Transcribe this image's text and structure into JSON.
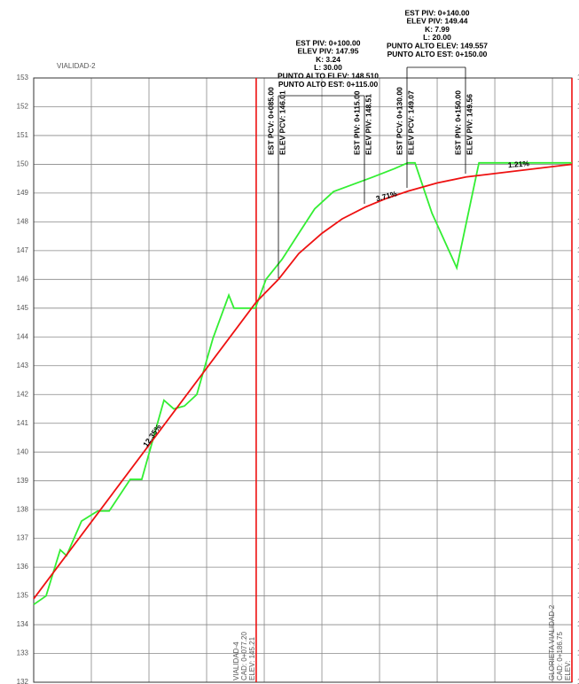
{
  "chart_data": {
    "type": "line",
    "title": "VIALIDAD-2",
    "xlim": [
      0,
      186.75
    ],
    "ylim": [
      132,
      153
    ],
    "xticks": [
      0,
      20,
      40,
      60,
      80,
      100,
      120,
      140,
      160,
      180
    ],
    "yticks": [
      132,
      133,
      134,
      135,
      136,
      137,
      138,
      139,
      140,
      141,
      142,
      143,
      144,
      145,
      146,
      147,
      148,
      149,
      150,
      151,
      152,
      153
    ],
    "grid": true,
    "series": [
      {
        "color": "#33ee33",
        "x": [
          0,
          4.3,
          9.2,
          11.4,
          16.6,
          22.2,
          26.2,
          33.5,
          37.5,
          45.2,
          48.6,
          52.3,
          56.6,
          62.2,
          67.7,
          69.5,
          76.9,
          80.6,
          86.2,
          92.3,
          97.5,
          104,
          117.5,
          125.2,
          129.8,
          132.3,
          138.2,
          146.8,
          154.5,
          186.75
        ],
        "values": [
          134.7,
          135.0,
          136.6,
          136.4,
          137.6,
          137.95,
          137.95,
          139.05,
          139.05,
          141.8,
          141.5,
          141.6,
          142.0,
          143.95,
          145.45,
          145.0,
          145.0,
          146.0,
          146.7,
          147.65,
          148.45,
          149.05,
          149.55,
          149.85,
          150.05,
          150.05,
          148.3,
          146.4,
          150.05,
          150.05
        ]
      },
      {
        "color": "#ee1111",
        "x": [
          0,
          77.2,
          85,
          92,
          100,
          107,
          115,
          122,
          130,
          140,
          150,
          186.75
        ],
        "values": [
          134.9,
          145.21,
          146.01,
          146.9,
          147.6,
          148.1,
          148.51,
          148.8,
          149.07,
          149.35,
          149.56,
          150.0
        ]
      }
    ],
    "markers": [
      {
        "x": 77.2,
        "color": "#ee1111",
        "labels": [
          "VIALIDAD-4",
          "CAD: 0+077.20",
          "ELEV: 145.21"
        ]
      },
      {
        "x": 186.75,
        "color": "#ee1111",
        "labels": [
          "GLORIETA VIALIDAD-2",
          "CAD: 0+186.75",
          "ELEV:"
        ]
      }
    ],
    "grade_labels": [
      "12.35%",
      "3.71%",
      "1.21%"
    ],
    "curve_labels": [
      [
        "EST PCV: 0+085.00",
        "ELEV PCV: 146.01"
      ],
      [
        "EST PIV: 0+115.00",
        "ELEV PIV: 148.51"
      ],
      [
        "EST PCV: 0+130.00",
        "ELEV PCV: 149.07"
      ],
      [
        "EST PIV: 0+150.00",
        "ELEV PIV: 149.56"
      ]
    ],
    "piv_blocks": [
      [
        "EST PIV: 0+100.00",
        "ELEV PIV: 147.95",
        "K: 3.24",
        "L: 30.00",
        "PUNTO ALTO ELEV: 148.510",
        "PUNTO ALTO EST: 0+115.00"
      ],
      [
        "EST PIV: 0+140.00",
        "ELEV PIV: 149.44",
        "K: 7.99",
        "L: 20.00",
        "PUNTO ALTO ELEV: 149.557",
        "PUNTO ALTO EST: 0+150.00"
      ]
    ]
  }
}
